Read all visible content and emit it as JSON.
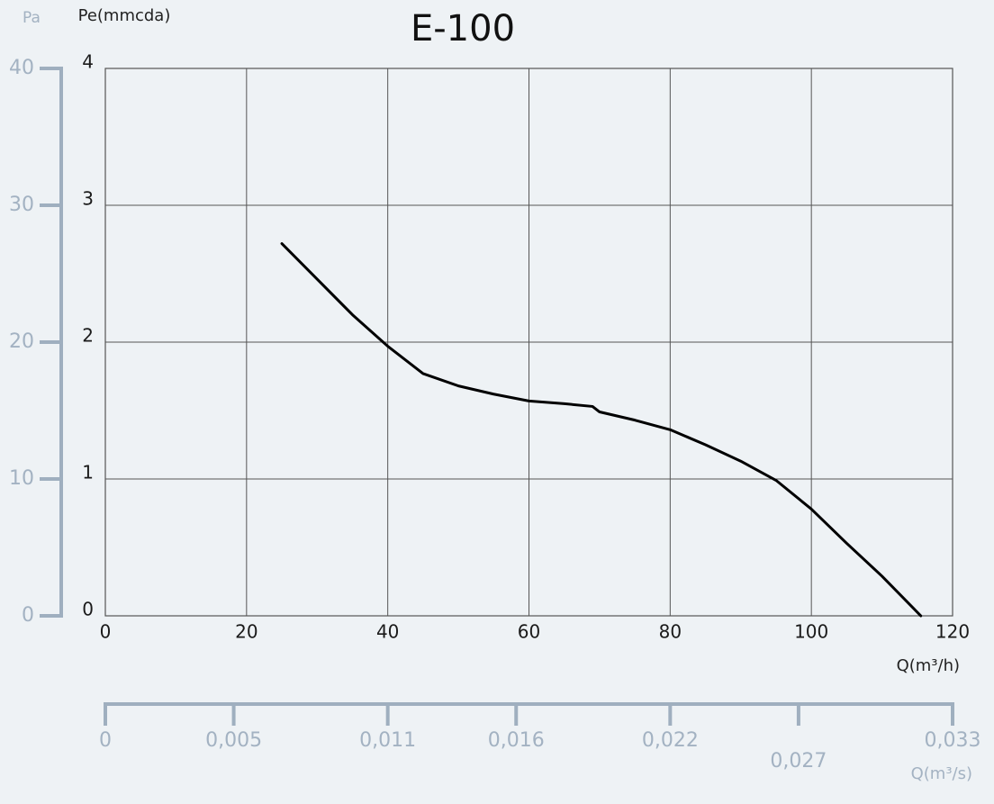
{
  "chart_data": {
    "type": "line",
    "title": "E-100",
    "y_label": "Pe(mmcda)",
    "y2_label": "Pa",
    "x_label": "Q(m³/h)",
    "x2_label": "Q(m³/s)",
    "x": [
      25,
      30,
      35,
      40,
      45,
      50,
      55,
      60,
      65,
      69,
      70,
      75,
      80,
      85,
      90,
      95,
      100,
      105,
      110,
      115.5
    ],
    "series": [
      {
        "name": "E-100",
        "color": "#000000",
        "values": [
          2.72,
          2.46,
          2.2,
          1.97,
          1.77,
          1.68,
          1.62,
          1.57,
          1.55,
          1.53,
          1.49,
          1.43,
          1.36,
          1.25,
          1.13,
          0.99,
          0.78,
          0.53,
          0.29,
          0
        ]
      }
    ],
    "xlim": [
      0,
      120
    ],
    "xticks": [
      0,
      20,
      40,
      60,
      80,
      100,
      120
    ],
    "ylim": [
      0,
      4
    ],
    "yticks": [
      0,
      1,
      2,
      3,
      4
    ],
    "y2lim": [
      0,
      40
    ],
    "y2ticks": [
      0,
      10,
      20,
      30,
      40
    ],
    "x2lim": [
      0,
      0.033
    ],
    "x2ticks": [
      0,
      {
        "value": 0.005,
        "label": "0,005"
      },
      {
        "value": 0.011,
        "label": "0,011"
      },
      {
        "value": 0.016,
        "label": "0,016"
      },
      {
        "value": 0.022,
        "label": "0,022"
      },
      {
        "value": 0.027,
        "label": "0,027"
      },
      {
        "value": 0.033,
        "label": "0,033"
      }
    ],
    "grid": true
  }
}
